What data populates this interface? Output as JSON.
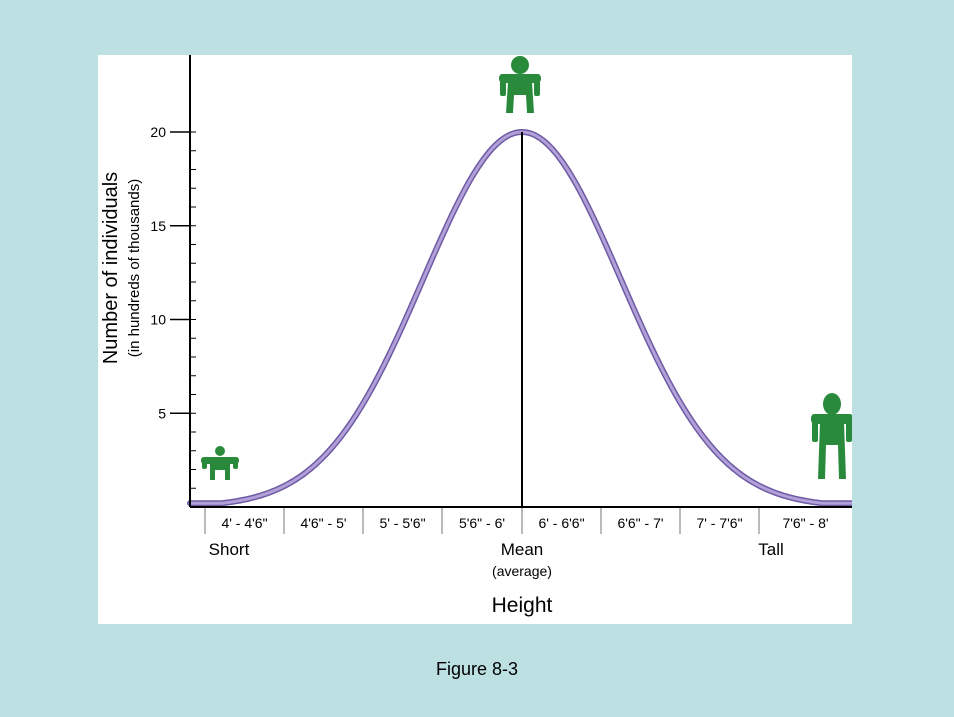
{
  "caption": "Figure 8-3",
  "colors": {
    "background": "#bde0e3",
    "panel": "#ffffff",
    "curve_fill": "#b3a0d8",
    "curve_stroke": "#6d5ba4",
    "figure_green": "#2a8a3c",
    "axis": "#000000"
  },
  "chart_data": {
    "type": "area",
    "title": "",
    "xlabel": "Height",
    "ylabel": "Number of individuals",
    "ylabel_sub": "(in hundreds of thousands)",
    "ylim": [
      0,
      20
    ],
    "y_ticks": [
      5,
      10,
      15,
      20
    ],
    "grid": false,
    "categories": [
      "4' - 4'6\"",
      "4'6\" - 5'",
      "5' - 5'6\"",
      "5'6\" - 6'",
      "6' - 6'6\"",
      "6'6\" - 7'",
      "7' - 7'6\"",
      "7'6\" - 8'"
    ],
    "distribution": {
      "shape": "normal",
      "peak_value": 20,
      "peak_at_boundary": "6'",
      "value_at_left_end": 0.2,
      "value_at_right_end": 0.2
    },
    "annotations": {
      "short": "Short",
      "mean": "Mean",
      "mean_sub": "(average)",
      "tall": "Tall"
    },
    "icons": [
      "short-person-icon",
      "average-person-icon",
      "tall-person-icon"
    ]
  }
}
